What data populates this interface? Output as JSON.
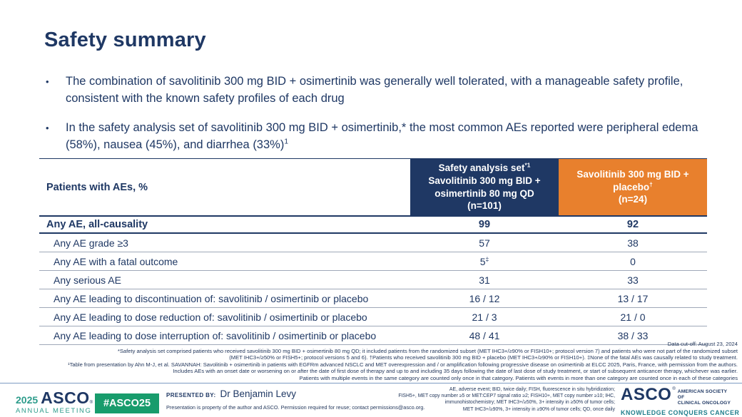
{
  "slide": {
    "title": "Safety summary",
    "bullets": [
      {
        "text": "The combination of savolitinib 300 mg BID + osimertinib was generally well tolerated, with a manageable safety profile, consistent with the known safety profiles of each drug",
        "sup": ""
      },
      {
        "text": "In the safety analysis set of savolitinib 300 mg BID + osimertinib,* the most common AEs reported were peripheral edema (58%), nausea (45%), and diarrhea (33%)",
        "sup": "1"
      }
    ]
  },
  "table": {
    "header": {
      "col1": "Patients with AEs, %",
      "col2": {
        "line1": "Safety analysis set",
        "line1_sup": "*1",
        "line2": "Savolitinib 300 mg BID + osimertinib 80 mg QD",
        "line3": "(n=101)"
      },
      "col3": {
        "line1": "Savolitinib 300 mg BID + placebo",
        "line1_sup": "†",
        "line3": "(n=24)"
      }
    },
    "rows": [
      {
        "label": "Any AE, all-causality",
        "v1": "99",
        "v2": "92"
      },
      {
        "label": "Any AE grade ≥3",
        "v1": "57",
        "v2": "38"
      },
      {
        "label": "Any AE with a fatal outcome",
        "v1": "5",
        "v1_sup": "‡",
        "v2": "0"
      },
      {
        "label": "Any serious AE",
        "v1": "31",
        "v2": "33"
      },
      {
        "label": "Any AE leading to discontinuation of: savolitinib / osimertinib or placebo",
        "v1": "16 / 12",
        "v2": "13 / 17"
      },
      {
        "label": "Any AE leading to dose reduction of: savolitinib / osimertinib or placebo",
        "v1": "21 / 3",
        "v2": "21 / 0"
      },
      {
        "label": "Any AE leading to dose interruption of: savolitinib / osimertinib or placebo",
        "v1": "48 / 41",
        "v2": "38 / 33"
      }
    ]
  },
  "footnotes": {
    "lines": [
      "Data cut-off: August 23, 2024",
      "*Safety analysis set comprised patients who received savolitinib 300 mg BID + osimertinib 80 mg QD; it included patients from the randomized subset (MET IHC3+/≥90% or FISH10+; protocol version 7) and patients who were not part of the randomized subset",
      "(MET IHC3+/≥50% or FISH5+; protocol versions 5 and 6). †Patients who received savolitinib 300 mg BID + placebo (MET IHC3+/≥90% or FISH10+). ‡None of the fatal AEs was causally related to study treatment.",
      "¹Table from presentation by Ahn M-J, et al. SAVANNAH: Savolitinib + osimertinib in patients with EGFRm advanced NSCLC and MET overexpression and / or amplification following progressive disease on osimertinib at ELCC 2025, Paris, France, with permission from the authors.",
      "Includes AEs with an onset date or worsening on or after the date of first dose of therapy and up to and including 35 days following the date of last dose of study treatment, or start of subsequent anticancer therapy, whichever was earlier.",
      "Patients with multiple events in the same category are counted only once in that category. Patients with events in more than one category are counted once in each of these categories"
    ]
  },
  "footer": {
    "meeting_year": "2025",
    "meeting_name": "ASCO",
    "meeting_reg": "®",
    "meeting_sub": "ANNUAL MEETING",
    "hashtag": "#ASCO25",
    "presented_by_label": "PRESENTED BY:",
    "presenter": "Dr Benjamin Levy",
    "permission": "Presentation is property of the author and ASCO. Permission required for reuse; contact permissions@asco.org.",
    "abbrev_lines": [
      "AE, adverse event; BID, twice daily; FISH, fluorescence in situ hybridization;",
      "FISH5+, MET copy number ≥5 or MET:CEP7 signal ratio ≥2; FISH10+, MET copy number ≥10; IHC,",
      "immunohistochemistry; MET IHC3+/≥50%, 3+ intensity in ≥50% of tumor cells;",
      "MET IHC3+/≥90%, 3+ intensity in ≥90% of tumor cells; QD, once daily"
    ],
    "asco_logo": "ASCO",
    "asco_reg": "®",
    "society_line1": "AMERICAN SOCIETY OF",
    "society_line2": "CLINICAL ONCOLOGY",
    "tagline": "KNOWLEDGE CONQUERS CANCER"
  },
  "colors": {
    "navy": "#1F3864",
    "orange": "#E8802D",
    "teal": "#2D9C8B",
    "teal_dark": "#1F7E8C",
    "green": "#189C6C"
  }
}
